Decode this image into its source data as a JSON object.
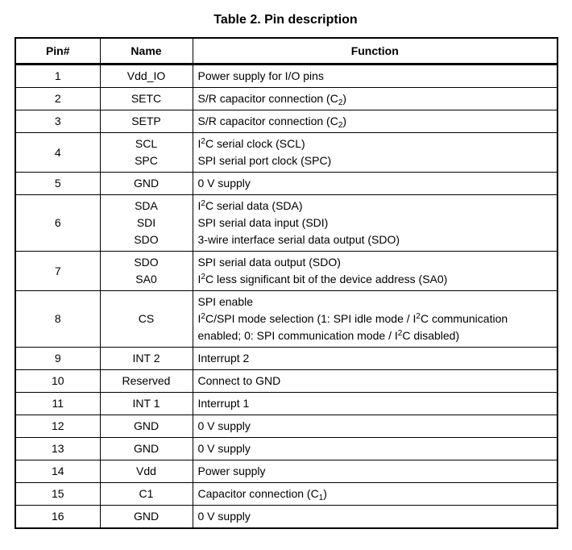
{
  "title": "Table 2. Pin description",
  "colors": {
    "background": "#ffffff",
    "text": "#000000",
    "border": "#000000"
  },
  "table": {
    "headers": [
      "Pin#",
      "Name",
      "Function"
    ],
    "rows": [
      {
        "pin": "1",
        "names": [
          "Vdd_IO"
        ],
        "functions": [
          [
            {
              "t": "Power supply for I/O pins"
            }
          ]
        ]
      },
      {
        "pin": "2",
        "names": [
          "SETC"
        ],
        "functions": [
          [
            {
              "t": "S/R capacitor connection (C"
            },
            {
              "t": "2",
              "style": "sub"
            },
            {
              "t": ")"
            }
          ]
        ]
      },
      {
        "pin": "3",
        "names": [
          "SETP"
        ],
        "functions": [
          [
            {
              "t": "S/R capacitor connection (C"
            },
            {
              "t": "2",
              "style": "sub"
            },
            {
              "t": ")"
            }
          ]
        ]
      },
      {
        "pin": "4",
        "names": [
          "SCL",
          "SPC"
        ],
        "functions": [
          [
            {
              "t": "I"
            },
            {
              "t": "2",
              "style": "sup"
            },
            {
              "t": "C serial clock (SCL)"
            }
          ],
          [
            {
              "t": "SPI serial port clock (SPC)"
            }
          ]
        ]
      },
      {
        "pin": "5",
        "names": [
          "GND"
        ],
        "functions": [
          [
            {
              "t": "0 V supply"
            }
          ]
        ]
      },
      {
        "pin": "6",
        "names": [
          "SDA",
          "SDI",
          "SDO"
        ],
        "functions": [
          [
            {
              "t": "I"
            },
            {
              "t": "2",
              "style": "sup"
            },
            {
              "t": "C serial data (SDA)"
            }
          ],
          [
            {
              "t": "SPI serial data input (SDI)"
            }
          ],
          [
            {
              "t": "3-wire interface serial data output (SDO)"
            }
          ]
        ]
      },
      {
        "pin": "7",
        "names": [
          "SDO",
          "SA0"
        ],
        "functions": [
          [
            {
              "t": "SPI serial data output (SDO)"
            }
          ],
          [
            {
              "t": "I"
            },
            {
              "t": "2",
              "style": "sup"
            },
            {
              "t": "C less significant bit of the device address (SA0)"
            }
          ]
        ]
      },
      {
        "pin": "8",
        "names": [
          "CS"
        ],
        "functions": [
          [
            {
              "t": "SPI enable"
            }
          ],
          [
            {
              "t": "I"
            },
            {
              "t": "2",
              "style": "sup"
            },
            {
              "t": "C/SPI mode selection (1: SPI idle mode / I"
            },
            {
              "t": "2",
              "style": "sup"
            },
            {
              "t": "C communication"
            }
          ],
          [
            {
              "t": "enabled; 0: SPI communication mode / I"
            },
            {
              "t": "2",
              "style": "sup"
            },
            {
              "t": "C disabled)"
            }
          ]
        ]
      },
      {
        "pin": "9",
        "names": [
          "INT 2"
        ],
        "functions": [
          [
            {
              "t": "Interrupt 2"
            }
          ]
        ]
      },
      {
        "pin": "10",
        "names": [
          "Reserved"
        ],
        "functions": [
          [
            {
              "t": "Connect to GND"
            }
          ]
        ]
      },
      {
        "pin": "11",
        "names": [
          "INT 1"
        ],
        "functions": [
          [
            {
              "t": "Interrupt 1"
            }
          ]
        ]
      },
      {
        "pin": "12",
        "names": [
          "GND"
        ],
        "functions": [
          [
            {
              "t": "0 V supply"
            }
          ]
        ]
      },
      {
        "pin": "13",
        "names": [
          "GND"
        ],
        "functions": [
          [
            {
              "t": "0 V supply"
            }
          ]
        ]
      },
      {
        "pin": "14",
        "names": [
          "Vdd"
        ],
        "functions": [
          [
            {
              "t": "Power supply"
            }
          ]
        ]
      },
      {
        "pin": "15",
        "names": [
          "C1"
        ],
        "functions": [
          [
            {
              "t": "Capacitor connection (C"
            },
            {
              "t": "1",
              "style": "sub"
            },
            {
              "t": ")"
            }
          ]
        ]
      },
      {
        "pin": "16",
        "names": [
          "GND"
        ],
        "functions": [
          [
            {
              "t": "0 V supply"
            }
          ]
        ]
      }
    ]
  }
}
